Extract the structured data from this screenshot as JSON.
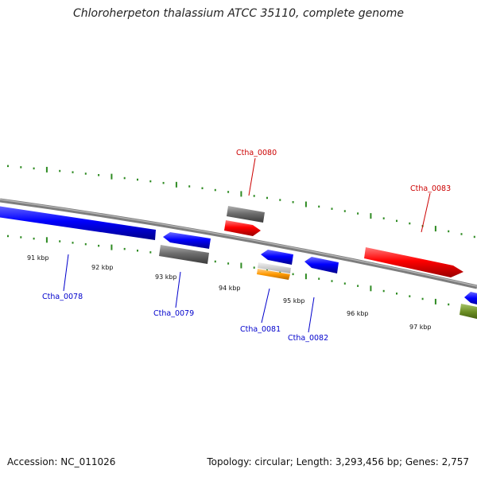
{
  "title": "Chloroherpeton thalassium ATCC 35110, complete genome",
  "footer": {
    "accession": "Accession: NC_011026",
    "stats": "Topology: circular; Length: 3,293,456 bp; Genes: 2,757"
  },
  "colors": {
    "backbone": "#8a8a8a",
    "tick": "#2e8b22",
    "forward_gene": "#ff0000",
    "reverse_gene": "#0000ff",
    "other_feature": "#707070",
    "orange_feature": "#ff9900",
    "olive_feature": "#6b8e23",
    "label_red": "#cc0000",
    "label_blue": "#0000cc"
  },
  "kbp_labels": [
    "91 kbp",
    "92 kbp",
    "93 kbp",
    "94 kbp",
    "95 kbp",
    "96 kbp",
    "97 kbp"
  ],
  "gene_labels": [
    {
      "name": "Ctha_0080",
      "strand": "forward"
    },
    {
      "name": "Ctha_0083",
      "strand": "forward"
    },
    {
      "name": "Ctha_0078",
      "strand": "reverse"
    },
    {
      "name": "Ctha_0079",
      "strand": "reverse"
    },
    {
      "name": "Ctha_0081",
      "strand": "reverse"
    },
    {
      "name": "Ctha_0082",
      "strand": "reverse"
    }
  ]
}
